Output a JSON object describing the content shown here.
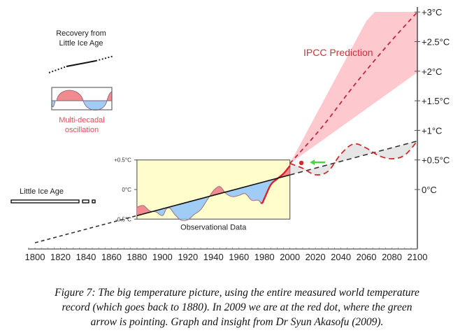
{
  "chart_data": {
    "type": "line",
    "title": "",
    "xlabel": "",
    "ylabel": "",
    "x_ticks": [
      1800,
      1820,
      1840,
      1860,
      1880,
      1900,
      1920,
      1940,
      1960,
      1980,
      2000,
      2020,
      2040,
      2060,
      2080,
      2100
    ],
    "xlim": [
      1800,
      2100
    ],
    "y_ticks": [
      {
        "value": 3.0,
        "label": "+3°C"
      },
      {
        "value": 2.5,
        "label": "+2.5°C"
      },
      {
        "value": 2.0,
        "label": "+2°C"
      },
      {
        "value": 1.5,
        "label": "+1.5°C"
      },
      {
        "value": 1.0,
        "label": "+1°C"
      },
      {
        "value": 0.5,
        "label": "+0.5°C"
      },
      {
        "value": 0.0,
        "label": "0°C"
      }
    ],
    "ylim": [
      -1.0,
      3.0
    ],
    "grid": false,
    "observational_box": {
      "label": "Observational Data",
      "x_range": [
        1880,
        2000
      ],
      "y_range": [
        -0.5,
        0.5
      ],
      "y_ticks": [
        {
          "value": 0.5,
          "label": "+0.5°C"
        },
        {
          "value": 0.0,
          "label": "0°C"
        },
        {
          "value": -0.5,
          "label": "-0.5°C"
        }
      ]
    },
    "series": [
      {
        "name": "Linear trend (Recovery from Little Ice Age)",
        "style": "dashed-black",
        "x": [
          1800,
          2100
        ],
        "y": [
          -0.9,
          0.82
        ]
      },
      {
        "name": "Observed temperature",
        "style": "solid",
        "x": [
          1880,
          1885,
          1890,
          1895,
          1900,
          1903,
          1906,
          1910,
          1915,
          1920,
          1925,
          1930,
          1935,
          1940,
          1945,
          1950,
          1955,
          1960,
          1965,
          1970,
          1975,
          1978,
          1980,
          1985,
          1990,
          1995,
          2000
        ],
        "y": [
          -0.3,
          -0.27,
          -0.36,
          -0.38,
          -0.44,
          -0.33,
          -0.32,
          -0.43,
          -0.52,
          -0.51,
          -0.42,
          -0.34,
          -0.18,
          -0.02,
          0.05,
          -0.07,
          -0.12,
          -0.1,
          -0.07,
          -0.18,
          -0.18,
          -0.23,
          -0.15,
          0.08,
          0.18,
          0.27,
          0.4
        ]
      },
      {
        "name": "Multi-decadal oscillation projection",
        "style": "dashed-red",
        "x": [
          2000,
          2010,
          2020,
          2030,
          2040,
          2050,
          2060,
          2070,
          2080,
          2090,
          2100
        ],
        "y": [
          0.44,
          0.36,
          0.25,
          0.31,
          0.6,
          0.77,
          0.7,
          0.57,
          0.52,
          0.58,
          0.82
        ]
      },
      {
        "name": "IPCC Prediction (central)",
        "style": "dashed-crimson",
        "x": [
          2000,
          2025,
          2050,
          2075,
          2100
        ],
        "y": [
          0.44,
          1.05,
          1.75,
          2.4,
          3.0
        ]
      },
      {
        "name": "IPCC Prediction range upper",
        "style": "band",
        "x": [
          2000,
          2060,
          2075
        ],
        "y": [
          0.44,
          2.85,
          3.1
        ]
      },
      {
        "name": "IPCC Prediction range lower",
        "style": "band",
        "x": [
          2000,
          2100
        ],
        "y": [
          0.44,
          1.98
        ]
      }
    ],
    "markers": [
      {
        "name": "2009 position (red dot)",
        "x": 2009,
        "y": 0.45,
        "color": "#d42a2a"
      },
      {
        "name": "green arrow",
        "x": 2020,
        "y": 0.46,
        "color": "#4dd63c",
        "points_to": "red dot"
      }
    ],
    "annotations": {
      "ipcc_label": "IPCC Prediction",
      "recovery_label_line1": "Recovery from",
      "recovery_label_line2": "Little  Ice Age",
      "oscillation_label_line1": "Multi-decadal",
      "oscillation_label_line2": "oscillation",
      "little_ice_age_label": "Little Ice Age",
      "observational_label": "Observational Data"
    },
    "colors": {
      "ipcc_band": "#fdc8ce",
      "ipcc_line": "#c0283c",
      "oscillation_line": "#d42a2a",
      "positive_fill": "#f28b8f",
      "negative_fill": "#9fcdf6",
      "obs_box_bg": "#fffdcc",
      "gap_fill": "#e6e6e6",
      "arrow": "#4dd63c"
    }
  },
  "caption": {
    "line1": "Figure 7: The big temperature picture, using the entire measured world temperature",
    "line2": "record (which goes back to 1880). In 2009 we are at the red dot, where the green",
    "line3": "arrow is pointing. Graph and insight from Dr Syun Akasofu (2009)."
  }
}
